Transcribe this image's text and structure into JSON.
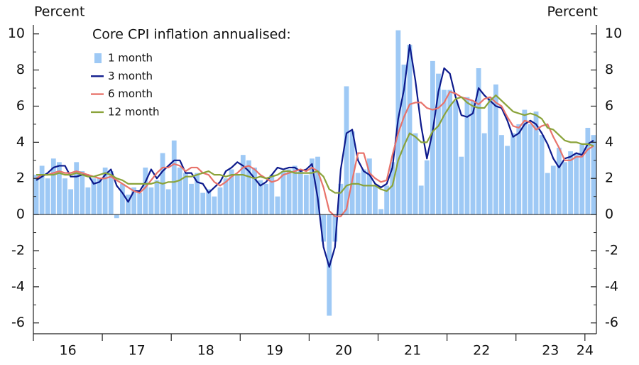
{
  "chart_data": {
    "type": "combo",
    "title": "Core CPI inflation annualised:",
    "y_label": "Percent",
    "y2_label": "Percent",
    "categories": [
      null,
      null,
      null,
      null,
      null,
      null,
      "16",
      null,
      null,
      null,
      null,
      null,
      null,
      null,
      null,
      null,
      null,
      null,
      "17",
      null,
      null,
      null,
      null,
      null,
      null,
      null,
      null,
      null,
      null,
      null,
      "18",
      null,
      null,
      null,
      null,
      null,
      null,
      null,
      null,
      null,
      null,
      null,
      "19",
      null,
      null,
      null,
      null,
      null,
      null,
      null,
      null,
      null,
      null,
      null,
      "20",
      null,
      null,
      null,
      null,
      null,
      null,
      null,
      null,
      null,
      null,
      null,
      "21",
      null,
      null,
      null,
      null,
      null,
      null,
      null,
      null,
      null,
      null,
      null,
      "22",
      null,
      null,
      null,
      null,
      null,
      null,
      null,
      null,
      null,
      null,
      null,
      "23",
      null,
      null,
      null,
      null,
      null,
      "24",
      null
    ],
    "ylim": [
      -6.6,
      10.5
    ],
    "yticks": [
      -6,
      -4,
      -2,
      0,
      2,
      4,
      6,
      8,
      10
    ],
    "y2lim": [
      -6.6,
      10.5
    ],
    "y2ticks": [
      -6,
      -4,
      -2,
      0,
      2,
      4,
      6,
      8,
      10
    ],
    "legend": "top-left",
    "series": [
      {
        "name": "1 month",
        "type": "bar",
        "color": "#9ec9f5",
        "values": [
          2.2,
          2.7,
          2.0,
          3.1,
          2.9,
          2.0,
          1.4,
          2.9,
          2.4,
          1.5,
          2.0,
          2.0,
          2.6,
          2.4,
          -0.2,
          1.7,
          1.1,
          1.5,
          1.2,
          2.6,
          1.5,
          1.9,
          3.4,
          1.4,
          4.1,
          2.6,
          2.3,
          1.7,
          2.3,
          1.2,
          1.4,
          1.0,
          1.5,
          2.0,
          2.5,
          2.2,
          3.3,
          3.0,
          2.6,
          1.9,
          1.7,
          2.2,
          1.0,
          2.4,
          2.5,
          2.7,
          2.4,
          2.2,
          3.1,
          3.2,
          -1.5,
          -5.6,
          -1.5,
          1.7,
          7.1,
          4.6,
          2.3,
          2.5,
          3.1,
          1.6,
          0.3,
          1.6,
          2.9,
          10.2,
          8.3,
          9.4,
          4.5,
          1.6,
          3.0,
          8.5,
          7.8,
          6.9,
          6.9,
          6.3,
          3.2,
          6.5,
          6.3,
          8.1,
          4.5,
          6.5,
          7.2,
          4.4,
          3.8,
          4.5,
          5.0,
          5.8,
          5.0,
          5.7,
          4.4,
          2.3,
          2.7,
          3.7,
          2.9,
          3.5,
          3.4,
          3.9,
          4.8,
          4.4
        ]
      },
      {
        "name": "3 month",
        "type": "line",
        "color": "#0d1a8c",
        "values": [
          1.9,
          2.1,
          2.3,
          2.6,
          2.7,
          2.7,
          2.1,
          2.1,
          2.2,
          2.2,
          1.7,
          1.8,
          2.2,
          2.5,
          1.6,
          1.2,
          0.7,
          1.3,
          1.3,
          1.8,
          2.5,
          2.0,
          2.4,
          2.7,
          3.0,
          3.0,
          2.3,
          2.3,
          1.8,
          1.7,
          1.2,
          1.5,
          1.8,
          2.4,
          2.6,
          2.9,
          2.7,
          2.4,
          2.0,
          1.6,
          1.8,
          2.2,
          2.6,
          2.5,
          2.6,
          2.6,
          2.4,
          2.5,
          2.8,
          0.9,
          -1.8,
          -2.9,
          -1.8,
          2.5,
          4.5,
          4.7,
          3.0,
          2.4,
          2.2,
          1.7,
          1.5,
          1.7,
          2.6,
          5.3,
          6.9,
          9.4,
          7.4,
          4.9,
          3.1,
          4.6,
          6.8,
          8.1,
          7.8,
          6.5,
          5.5,
          5.4,
          5.6,
          7.0,
          6.6,
          6.3,
          6.0,
          5.9,
          5.2,
          4.3,
          4.5,
          5.0,
          5.2,
          5.0,
          4.5,
          3.9,
          3.1,
          2.6,
          3.1,
          3.2,
          3.4,
          3.3,
          3.9,
          4.1
        ]
      },
      {
        "name": "6 month",
        "type": "line",
        "color": "#e8736b",
        "values": [
          2.0,
          2.2,
          2.2,
          2.3,
          2.4,
          2.3,
          2.3,
          2.4,
          2.3,
          2.2,
          2.1,
          2.0,
          2.0,
          2.1,
          1.9,
          1.7,
          1.5,
          1.3,
          1.2,
          1.5,
          1.9,
          2.3,
          2.6,
          2.6,
          2.8,
          2.7,
          2.4,
          2.6,
          2.6,
          2.3,
          2.2,
          1.8,
          1.6,
          1.8,
          2.1,
          2.3,
          2.6,
          2.7,
          2.5,
          2.2,
          2.0,
          1.8,
          1.9,
          2.2,
          2.3,
          2.4,
          2.5,
          2.4,
          2.6,
          2.4,
          1.5,
          0.2,
          -0.1,
          -0.1,
          0.3,
          1.9,
          3.4,
          3.4,
          2.3,
          2.0,
          1.8,
          1.9,
          3.3,
          4.5,
          5.4,
          6.1,
          6.2,
          6.2,
          5.9,
          5.8,
          5.9,
          6.2,
          6.8,
          6.7,
          6.5,
          6.4,
          6.3,
          6.1,
          6.4,
          6.5,
          6.2,
          6.0,
          5.4,
          4.9,
          4.8,
          5.2,
          5.1,
          4.7,
          4.9,
          5.0,
          4.3,
          3.7,
          3.0,
          3.0,
          3.2,
          3.2,
          3.6,
          3.8
        ]
      },
      {
        "name": "12 month",
        "type": "line",
        "color": "#8aa33a",
        "values": [
          2.2,
          2.2,
          2.2,
          2.2,
          2.3,
          2.2,
          2.2,
          2.3,
          2.2,
          2.1,
          2.1,
          2.2,
          2.3,
          2.2,
          2.0,
          1.9,
          1.7,
          1.7,
          1.7,
          1.7,
          1.7,
          1.8,
          1.7,
          1.8,
          1.8,
          1.9,
          2.1,
          2.1,
          2.2,
          2.3,
          2.4,
          2.2,
          2.2,
          2.1,
          2.2,
          2.2,
          2.2,
          2.1,
          2.0,
          2.1,
          2.0,
          2.1,
          2.2,
          2.4,
          2.4,
          2.3,
          2.3,
          2.3,
          2.3,
          2.4,
          2.1,
          1.4,
          1.2,
          1.2,
          1.6,
          1.7,
          1.7,
          1.6,
          1.6,
          1.6,
          1.4,
          1.3,
          1.6,
          3.0,
          3.8,
          4.5,
          4.3,
          4.0,
          4.0,
          4.6,
          4.9,
          5.5,
          6.0,
          6.4,
          6.5,
          6.2,
          6.0,
          5.9,
          5.9,
          6.3,
          6.6,
          6.3,
          6.0,
          5.7,
          5.6,
          5.5,
          5.6,
          5.5,
          5.3,
          4.8,
          4.7,
          4.4,
          4.1,
          4.0,
          4.0,
          3.9,
          3.9,
          3.8
        ]
      }
    ]
  }
}
